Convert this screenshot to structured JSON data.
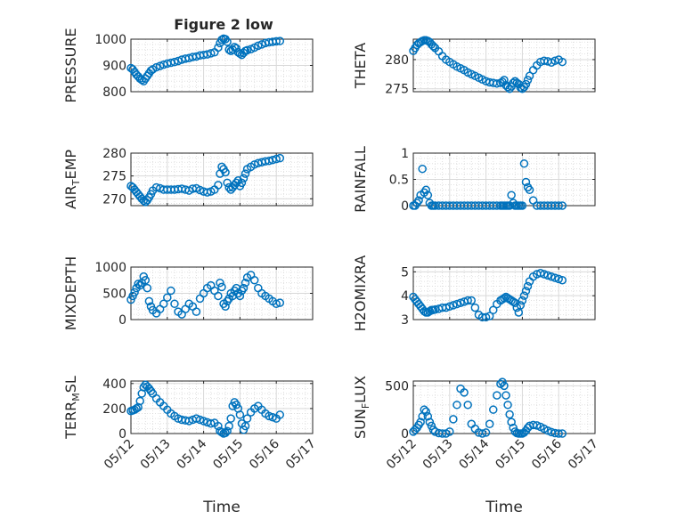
{
  "figure": {
    "title": "Figure 2 low",
    "marker_color": "#0072BD",
    "axis_color": "#262626",
    "grid_color": "#d9d9d9"
  },
  "chart_data": [
    {
      "type": "scatter",
      "marker": "circle-open",
      "title": "Figure 2 low",
      "ylabel": "PRESSURE",
      "xlabel": "",
      "ylim": [
        800,
        1000
      ],
      "yticks": [
        800,
        900,
        1000
      ],
      "xlim": [
        "05/12",
        "05/17"
      ],
      "xticks": [
        "05/12",
        "05/13",
        "05/14",
        "05/15",
        "05/16",
        "05/17"
      ],
      "xtick_labels_visible": false,
      "grid": "major+minor",
      "x": [
        0.0,
        0.05,
        0.1,
        0.15,
        0.2,
        0.25,
        0.3,
        0.35,
        0.4,
        0.45,
        0.5,
        0.55,
        0.6,
        0.7,
        0.8,
        0.9,
        1.0,
        1.1,
        1.2,
        1.3,
        1.4,
        1.5,
        1.6,
        1.7,
        1.8,
        1.9,
        2.0,
        2.1,
        2.2,
        2.3,
        2.4,
        2.45,
        2.5,
        2.55,
        2.6,
        2.65,
        2.7,
        2.75,
        2.8,
        2.85,
        2.9,
        2.95,
        3.0,
        3.05,
        3.1,
        3.15,
        3.2,
        3.3,
        3.4,
        3.5,
        3.6,
        3.7,
        3.8,
        3.9,
        4.0,
        4.1
      ],
      "y": [
        890,
        885,
        875,
        865,
        858,
        850,
        845,
        840,
        850,
        860,
        870,
        880,
        885,
        893,
        898,
        903,
        907,
        910,
        913,
        917,
        922,
        926,
        928,
        932,
        934,
        938,
        940,
        942,
        946,
        950,
        968,
        985,
        998,
        1002,
        1000,
        990,
        960,
        955,
        960,
        970,
        965,
        950,
        945,
        940,
        948,
        955,
        958,
        962,
        968,
        975,
        980,
        985,
        988,
        990,
        992,
        993
      ]
    },
    {
      "type": "scatter",
      "marker": "circle-open",
      "title": "",
      "ylabel": "THETA",
      "xlabel": "",
      "ylim": [
        274.5,
        283.5
      ],
      "yticks": [
        275,
        280
      ],
      "xlim": [
        "05/12",
        "05/17"
      ],
      "xticks": [
        "05/12",
        "05/13",
        "05/14",
        "05/15",
        "05/16",
        "05/17"
      ],
      "xtick_labels_visible": false,
      "grid": "major+minor",
      "x": [
        0.0,
        0.05,
        0.1,
        0.15,
        0.2,
        0.25,
        0.3,
        0.35,
        0.4,
        0.45,
        0.5,
        0.55,
        0.6,
        0.7,
        0.8,
        0.9,
        1.0,
        1.1,
        1.2,
        1.3,
        1.4,
        1.5,
        1.6,
        1.7,
        1.8,
        1.9,
        2.0,
        2.1,
        2.2,
        2.3,
        2.4,
        2.45,
        2.5,
        2.55,
        2.6,
        2.65,
        2.7,
        2.75,
        2.8,
        2.85,
        2.9,
        2.95,
        3.0,
        3.05,
        3.1,
        3.15,
        3.2,
        3.3,
        3.4,
        3.5,
        3.6,
        3.7,
        3.8,
        3.9,
        4.0,
        4.1
      ],
      "y": [
        281.5,
        282,
        282.5,
        282.8,
        283,
        283.2,
        283.3,
        283.3,
        283.2,
        283,
        282.6,
        282.3,
        282,
        281.4,
        280.6,
        280,
        279.6,
        279.2,
        278.8,
        278.5,
        278.2,
        277.8,
        277.5,
        277.2,
        276.9,
        276.6,
        276.3,
        276.1,
        276,
        275.9,
        276,
        276.2,
        276.5,
        275.6,
        275.3,
        275.0,
        275.4,
        276.0,
        276.3,
        276.0,
        275.8,
        275.2,
        275.0,
        275.3,
        275.8,
        276.5,
        277.2,
        278.2,
        279.0,
        279.6,
        279.8,
        279.7,
        279.5,
        279.8,
        280.0,
        279.6
      ]
    },
    {
      "type": "scatter",
      "marker": "circle-open",
      "title": "",
      "ylabel": "AIR_TEMP",
      "xlabel": "",
      "ylim": [
        268.5,
        280
      ],
      "yticks": [
        270,
        275,
        280
      ],
      "xlim": [
        "05/12",
        "05/17"
      ],
      "xticks": [
        "05/12",
        "05/13",
        "05/14",
        "05/15",
        "05/16",
        "05/17"
      ],
      "xtick_labels_visible": false,
      "grid": "major+minor",
      "x": [
        0.0,
        0.05,
        0.1,
        0.15,
        0.2,
        0.25,
        0.3,
        0.35,
        0.4,
        0.45,
        0.5,
        0.55,
        0.6,
        0.7,
        0.8,
        0.9,
        1.0,
        1.1,
        1.2,
        1.3,
        1.4,
        1.5,
        1.6,
        1.7,
        1.8,
        1.9,
        2.0,
        2.1,
        2.2,
        2.3,
        2.4,
        2.45,
        2.5,
        2.55,
        2.6,
        2.65,
        2.7,
        2.75,
        2.8,
        2.85,
        2.9,
        2.95,
        3.0,
        3.05,
        3.1,
        3.15,
        3.2,
        3.3,
        3.4,
        3.5,
        3.6,
        3.7,
        3.8,
        3.9,
        4.0,
        4.1
      ],
      "y": [
        272.8,
        272.5,
        272,
        271.5,
        271,
        270.5,
        270,
        269.6,
        269.3,
        269.7,
        270.3,
        271,
        271.8,
        272.5,
        272.3,
        272,
        272,
        272,
        272,
        272.1,
        272.2,
        272.0,
        271.8,
        272.2,
        272.3,
        271.9,
        271.6,
        271.4,
        271.6,
        272.0,
        273.0,
        275.5,
        277.0,
        276.5,
        275.8,
        273.5,
        272.5,
        272.0,
        272.5,
        273.0,
        273.5,
        274.0,
        272.8,
        273.5,
        274.5,
        275.5,
        276.5,
        277.0,
        277.5,
        277.8,
        278.0,
        278.2,
        278.3,
        278.5,
        278.7,
        278.9
      ]
    },
    {
      "type": "scatter",
      "marker": "circle-open",
      "title": "",
      "ylabel": "RAINFALL",
      "xlabel": "",
      "ylim": [
        0,
        1
      ],
      "yticks": [
        0,
        0.5,
        1
      ],
      "xlim": [
        "05/12",
        "05/17"
      ],
      "xticks": [
        "05/12",
        "05/13",
        "05/14",
        "05/15",
        "05/16",
        "05/17"
      ],
      "xtick_labels_visible": false,
      "grid": "major+minor",
      "x": [
        0.0,
        0.05,
        0.1,
        0.15,
        0.2,
        0.25,
        0.3,
        0.35,
        0.4,
        0.45,
        0.5,
        0.55,
        0.6,
        0.7,
        0.8,
        0.9,
        1.0,
        1.1,
        1.2,
        1.3,
        1.4,
        1.5,
        1.6,
        1.7,
        1.8,
        1.9,
        2.0,
        2.1,
        2.2,
        2.3,
        2.4,
        2.45,
        2.5,
        2.55,
        2.6,
        2.65,
        2.7,
        2.75,
        2.8,
        2.85,
        2.9,
        2.95,
        3.0,
        3.05,
        3.1,
        3.15,
        3.2,
        3.3,
        3.4,
        3.5,
        3.6,
        3.7,
        3.8,
        3.9,
        4.0,
        4.1
      ],
      "y": [
        0,
        0,
        0.05,
        0.1,
        0.2,
        0.7,
        0.25,
        0.3,
        0.2,
        0.05,
        0,
        0,
        0,
        0,
        0,
        0,
        0,
        0,
        0,
        0,
        0,
        0,
        0,
        0,
        0,
        0,
        0,
        0,
        0,
        0,
        0,
        0,
        0,
        0,
        0,
        0,
        0.2,
        0.05,
        0,
        0,
        0,
        0,
        0,
        0.8,
        0.45,
        0.35,
        0.3,
        0.1,
        0,
        0,
        0,
        0,
        0,
        0,
        0,
        0
      ]
    },
    {
      "type": "scatter",
      "marker": "circle-open",
      "title": "",
      "ylabel": "MIXDEPTH",
      "xlabel": "",
      "ylim": [
        0,
        1000
      ],
      "yticks": [
        0,
        500,
        1000
      ],
      "xlim": [
        "05/12",
        "05/17"
      ],
      "xticks": [
        "05/12",
        "05/13",
        "05/14",
        "05/15",
        "05/16",
        "05/17"
      ],
      "xtick_labels_visible": false,
      "grid": "major+minor",
      "x": [
        0.0,
        0.05,
        0.1,
        0.15,
        0.2,
        0.25,
        0.3,
        0.35,
        0.4,
        0.45,
        0.5,
        0.55,
        0.6,
        0.7,
        0.8,
        0.9,
        1.0,
        1.1,
        1.2,
        1.3,
        1.4,
        1.5,
        1.6,
        1.7,
        1.8,
        1.9,
        2.0,
        2.1,
        2.2,
        2.3,
        2.4,
        2.45,
        2.5,
        2.55,
        2.6,
        2.65,
        2.7,
        2.75,
        2.8,
        2.85,
        2.9,
        2.95,
        3.0,
        3.05,
        3.1,
        3.15,
        3.2,
        3.3,
        3.4,
        3.5,
        3.6,
        3.7,
        3.8,
        3.9,
        4.0,
        4.1
      ],
      "y": [
        380,
        450,
        520,
        600,
        680,
        650,
        700,
        820,
        750,
        600,
        350,
        250,
        180,
        120,
        200,
        300,
        420,
        550,
        300,
        150,
        100,
        200,
        300,
        250,
        150,
        400,
        500,
        600,
        650,
        550,
        450,
        700,
        620,
        300,
        250,
        350,
        400,
        500,
        450,
        550,
        600,
        500,
        450,
        550,
        600,
        700,
        800,
        850,
        750,
        600,
        500,
        450,
        400,
        350,
        300,
        320
      ]
    },
    {
      "type": "scatter",
      "marker": "circle-open",
      "title": "",
      "ylabel": "H2OMIXRA",
      "xlabel": "",
      "ylim": [
        3,
        5.2
      ],
      "yticks": [
        3,
        4,
        5
      ],
      "xlim": [
        "05/12",
        "05/17"
      ],
      "xticks": [
        "05/12",
        "05/13",
        "05/14",
        "05/15",
        "05/16",
        "05/17"
      ],
      "xtick_labels_visible": false,
      "grid": "major+minor",
      "x": [
        0.0,
        0.05,
        0.1,
        0.15,
        0.2,
        0.25,
        0.3,
        0.35,
        0.4,
        0.45,
        0.5,
        0.55,
        0.6,
        0.7,
        0.8,
        0.9,
        1.0,
        1.1,
        1.2,
        1.3,
        1.4,
        1.5,
        1.6,
        1.7,
        1.8,
        1.9,
        2.0,
        2.1,
        2.2,
        2.3,
        2.4,
        2.45,
        2.5,
        2.55,
        2.6,
        2.65,
        2.7,
        2.75,
        2.8,
        2.85,
        2.9,
        2.95,
        3.0,
        3.05,
        3.1,
        3.15,
        3.2,
        3.3,
        3.4,
        3.5,
        3.6,
        3.7,
        3.8,
        3.9,
        4.0,
        4.1
      ],
      "y": [
        3.95,
        3.85,
        3.75,
        3.65,
        3.55,
        3.45,
        3.35,
        3.3,
        3.3,
        3.35,
        3.4,
        3.4,
        3.42,
        3.45,
        3.5,
        3.5,
        3.55,
        3.6,
        3.65,
        3.7,
        3.75,
        3.8,
        3.8,
        3.5,
        3.2,
        3.1,
        3.1,
        3.15,
        3.4,
        3.65,
        3.8,
        3.85,
        3.9,
        3.95,
        3.9,
        3.85,
        3.8,
        3.75,
        3.7,
        3.5,
        3.3,
        3.6,
        3.8,
        4.0,
        4.2,
        4.4,
        4.6,
        4.8,
        4.9,
        4.95,
        4.9,
        4.85,
        4.8,
        4.75,
        4.7,
        4.65
      ]
    },
    {
      "type": "scatter",
      "marker": "circle-open",
      "title": "",
      "ylabel": "TERR_MSL",
      "xlabel": "Time",
      "ylim": [
        0,
        420
      ],
      "yticks": [
        0,
        200,
        400
      ],
      "xlim": [
        "05/12",
        "05/17"
      ],
      "xticks": [
        "05/12",
        "05/13",
        "05/14",
        "05/15",
        "05/16",
        "05/17"
      ],
      "xtick_labels_visible": true,
      "grid": "major+minor",
      "x": [
        0.0,
        0.05,
        0.1,
        0.15,
        0.2,
        0.25,
        0.3,
        0.35,
        0.4,
        0.45,
        0.5,
        0.55,
        0.6,
        0.7,
        0.8,
        0.9,
        1.0,
        1.1,
        1.2,
        1.3,
        1.4,
        1.5,
        1.6,
        1.7,
        1.8,
        1.9,
        2.0,
        2.1,
        2.2,
        2.3,
        2.4,
        2.45,
        2.5,
        2.55,
        2.6,
        2.65,
        2.7,
        2.75,
        2.8,
        2.85,
        2.9,
        2.95,
        3.0,
        3.05,
        3.1,
        3.15,
        3.2,
        3.3,
        3.4,
        3.5,
        3.6,
        3.7,
        3.8,
        3.9,
        4.0,
        4.1
      ],
      "y": [
        180,
        185,
        190,
        200,
        210,
        260,
        320,
        370,
        390,
        375,
        360,
        340,
        320,
        280,
        250,
        220,
        190,
        160,
        140,
        120,
        110,
        105,
        100,
        110,
        120,
        110,
        100,
        90,
        80,
        85,
        60,
        20,
        10,
        0,
        5,
        20,
        60,
        120,
        220,
        250,
        230,
        200,
        150,
        80,
        30,
        60,
        120,
        170,
        200,
        220,
        190,
        160,
        140,
        130,
        120,
        150
      ]
    },
    {
      "type": "scatter",
      "marker": "circle-open",
      "title": "",
      "ylabel": "SUN_FLUX",
      "xlabel": "Time",
      "ylim": [
        0,
        550
      ],
      "yticks": [
        0,
        500
      ],
      "xlim": [
        "05/12",
        "05/17"
      ],
      "xticks": [
        "05/12",
        "05/13",
        "05/14",
        "05/15",
        "05/16",
        "05/17"
      ],
      "xtick_labels_visible": true,
      "grid": "major+minor",
      "x": [
        0.0,
        0.05,
        0.1,
        0.15,
        0.2,
        0.25,
        0.3,
        0.35,
        0.4,
        0.45,
        0.5,
        0.55,
        0.6,
        0.7,
        0.8,
        0.9,
        1.0,
        1.1,
        1.2,
        1.3,
        1.4,
        1.5,
        1.6,
        1.7,
        1.8,
        1.9,
        2.0,
        2.1,
        2.2,
        2.3,
        2.4,
        2.45,
        2.5,
        2.55,
        2.6,
        2.65,
        2.7,
        2.75,
        2.8,
        2.85,
        2.9,
        2.95,
        3.0,
        3.05,
        3.1,
        3.15,
        3.2,
        3.3,
        3.4,
        3.5,
        3.6,
        3.7,
        3.8,
        3.9,
        4.0,
        4.1
      ],
      "y": [
        20,
        40,
        60,
        90,
        120,
        180,
        250,
        230,
        180,
        120,
        80,
        40,
        20,
        5,
        0,
        0,
        20,
        150,
        300,
        470,
        430,
        300,
        100,
        50,
        10,
        0,
        10,
        100,
        250,
        400,
        520,
        540,
        500,
        400,
        300,
        200,
        120,
        60,
        20,
        5,
        0,
        0,
        0,
        10,
        30,
        60,
        80,
        90,
        85,
        70,
        50,
        30,
        15,
        5,
        0,
        0
      ]
    }
  ]
}
